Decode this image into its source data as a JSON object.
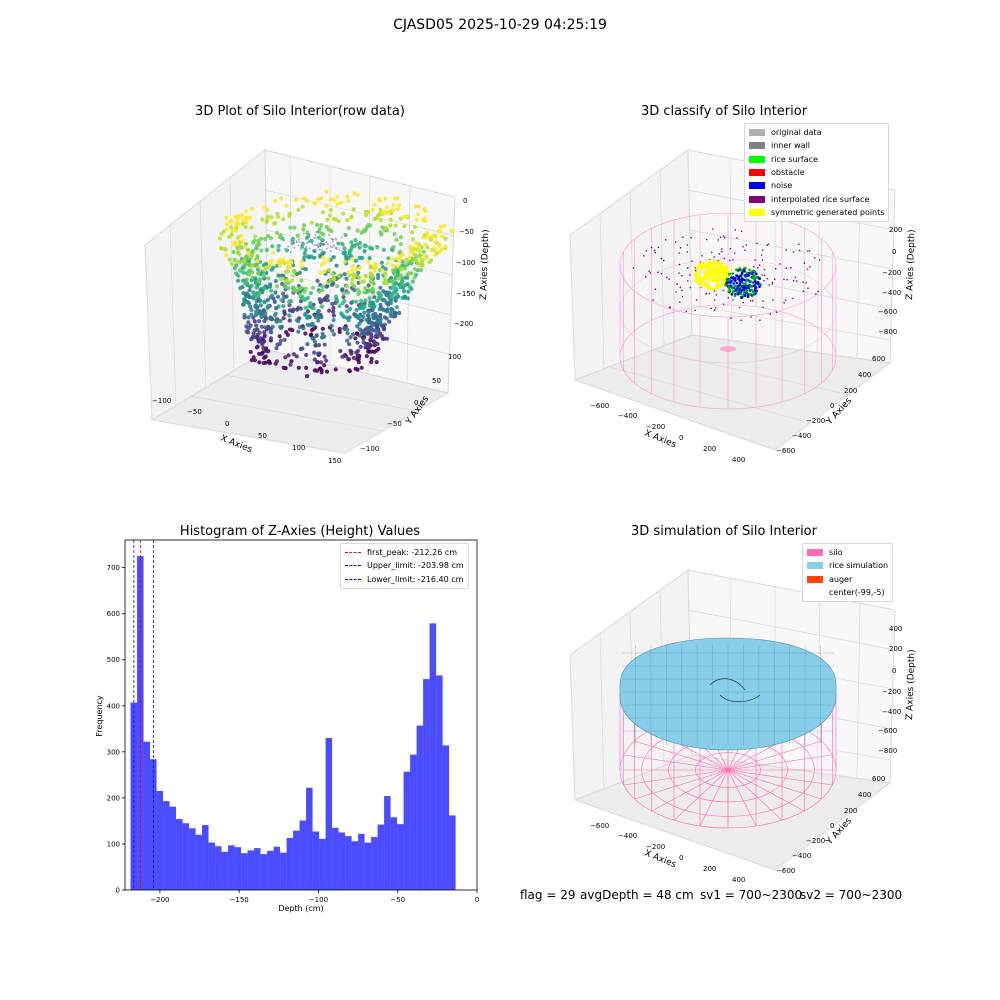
{
  "suptitle": "CJASD05 2025-10-29 04:25:19",
  "panels": {
    "raw": {
      "title": "3D Plot of Silo Interior(row data)",
      "xlabel": "X Axies",
      "ylabel": "Y Axies",
      "zlabel": "Z Axies (Depth)",
      "xticks": [
        "−100",
        "−50",
        "0",
        "50",
        "100",
        "150"
      ],
      "yticks": [
        "100",
        "50",
        "0",
        "−50",
        "−100"
      ],
      "zticks": [
        "0",
        "−50",
        "−100",
        "−150",
        "−200"
      ],
      "colormap": "viridis"
    },
    "classify": {
      "title": "3D classify of Silo Interior",
      "xlabel": "X Axies",
      "ylabel": "Y Axies",
      "zlabel": "Z Axies (Depth)",
      "xticks": [
        "−600",
        "−400",
        "−200",
        "0",
        "200",
        "400"
      ],
      "yticks": [
        "600",
        "400",
        "200",
        "0",
        "−200",
        "−400",
        "−600"
      ],
      "zticks": [
        "200",
        "0",
        "−200",
        "−400",
        "−600",
        "−800"
      ],
      "legend": [
        {
          "label": "original data",
          "color": "#b0b0b0"
        },
        {
          "label": "inner wall",
          "color": "#808080"
        },
        {
          "label": "rice surface",
          "color": "#00ff00"
        },
        {
          "label": "obstacle",
          "color": "#ff0000"
        },
        {
          "label": "noise",
          "color": "#0000ff"
        },
        {
          "label": "interpolated rice surface",
          "color": "#800080"
        },
        {
          "label": "symmetric generated points",
          "color": "#ffff00"
        }
      ]
    },
    "simulation": {
      "title": "3D simulation of Silo Interior",
      "xlabel": "X Axies",
      "ylabel": "Y Axies",
      "zlabel": "Z Axies (Depth)",
      "xticks": [
        "−600",
        "−400",
        "−200",
        "0",
        "200",
        "400"
      ],
      "yticks": [
        "600",
        "400",
        "200",
        "0",
        "−200",
        "−400",
        "−600"
      ],
      "zticks": [
        "400",
        "200",
        "0",
        "−200",
        "−400",
        "−600",
        "−800"
      ],
      "legend": [
        {
          "label": "silo",
          "color": "#ff69b4"
        },
        {
          "label": "rice simulation",
          "color": "#87ceeb"
        },
        {
          "label": "auger",
          "color": "#ff4500"
        },
        {
          "label": "center(-99,-5)",
          "color": "#ffffff"
        }
      ]
    }
  },
  "chart_data": {
    "type": "bar",
    "title": "Histogram of Z-Axies (Height) Values",
    "xlabel": "Depth (cm)",
    "ylabel": "Frequency",
    "xlim": [
      -222,
      0
    ],
    "ylim": [
      0,
      760
    ],
    "xticks": [
      "−200",
      "−150",
      "−100",
      "−50",
      "0"
    ],
    "xtick_values": [
      -200,
      -150,
      -100,
      -50,
      0
    ],
    "yticks": [
      "0",
      "100",
      "200",
      "300",
      "400",
      "500",
      "600",
      "700"
    ],
    "ytick_values": [
      0,
      100,
      200,
      300,
      400,
      500,
      600,
      700
    ],
    "bin_start": -218.5,
    "bin_width": 4.1,
    "values": [
      407,
      725,
      322,
      284,
      215,
      193,
      181,
      154,
      145,
      134,
      120,
      141,
      103,
      95,
      83,
      97,
      93,
      80,
      86,
      91,
      78,
      85,
      94,
      81,
      113,
      129,
      151,
      222,
      127,
      111,
      330,
      135,
      125,
      117,
      106,
      122,
      103,
      115,
      142,
      204,
      158,
      143,
      257,
      294,
      357,
      458,
      579,
      466,
      314,
      162
    ],
    "bar_color": "#0000ff",
    "lines": [
      {
        "label": "first_peak: -212.26 cm",
        "x": -212.26,
        "color": "#ff0000"
      },
      {
        "label": "Upper_limit: -203.98 cm",
        "x": -203.98,
        "color": "#0000ff"
      },
      {
        "label": "Lower_limit: -216.40 cm",
        "x": -216.4,
        "color": "#0000ff"
      }
    ]
  },
  "footer": {
    "flag": "flag = 29",
    "avg": "avgDepth = 48 cm",
    "sv1": "sv1 = 700~2300",
    "sv2": "sv2 = 700~2300"
  }
}
